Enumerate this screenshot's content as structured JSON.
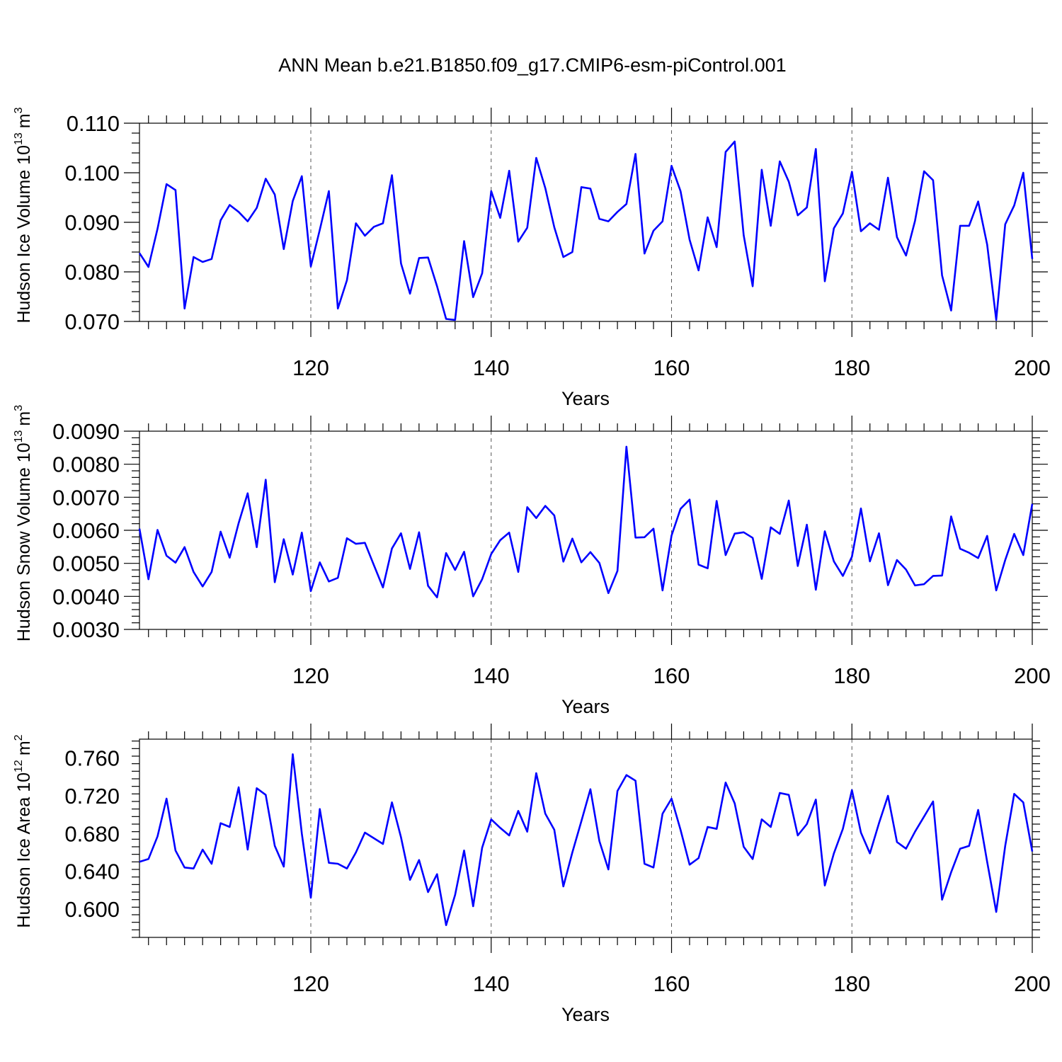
{
  "title": "ANN Mean b.e21.B1850.f09_g17.CMIP6-esm-piControl.001",
  "colors": {
    "line": "#0000ff",
    "axis": "#000000",
    "grid": "#555555"
  },
  "chart_data": [
    {
      "type": "line",
      "name": "ice-volume",
      "ylabel_main": "Hudson Ice Volume 10",
      "ylabel_exp": "13",
      "ylabel_unit": "m",
      "ylabel_unit_exp": "3",
      "xlabel": "Years",
      "xlim": [
        101,
        200
      ],
      "ylim": [
        0.07,
        0.11
      ],
      "yticks": [
        0.07,
        0.08,
        0.09,
        0.1,
        0.11
      ],
      "ytick_labels": [
        "0.070",
        "0.080",
        "0.090",
        "0.100",
        "0.110"
      ],
      "xticks": [
        120,
        140,
        160,
        180,
        200
      ],
      "xtick_labels": [
        "120",
        "140",
        "160",
        "180",
        "200"
      ],
      "x": [
        101,
        102,
        103,
        104,
        105,
        106,
        107,
        108,
        109,
        110,
        111,
        112,
        113,
        114,
        115,
        116,
        117,
        118,
        119,
        120,
        121,
        122,
        123,
        124,
        125,
        126,
        127,
        128,
        129,
        130,
        131,
        132,
        133,
        134,
        135,
        136,
        137,
        138,
        139,
        140,
        141,
        142,
        143,
        144,
        145,
        146,
        147,
        148,
        149,
        150,
        151,
        152,
        153,
        154,
        155,
        156,
        157,
        158,
        159,
        160,
        161,
        162,
        163,
        164,
        165,
        166,
        167,
        168,
        169,
        170,
        171,
        172,
        173,
        174,
        175,
        176,
        177,
        178,
        179,
        180,
        181,
        182,
        183,
        184,
        185,
        186,
        187,
        188,
        189,
        190,
        191,
        192,
        193,
        194,
        195,
        196,
        197,
        198,
        199,
        200
      ],
      "values": [
        0.0838,
        0.081,
        0.0887,
        0.0977,
        0.0965,
        0.0726,
        0.083,
        0.082,
        0.0826,
        0.0904,
        0.0935,
        0.0921,
        0.0902,
        0.0929,
        0.0988,
        0.0956,
        0.0846,
        0.0943,
        0.0993,
        0.0811,
        0.0885,
        0.0963,
        0.0726,
        0.0783,
        0.0898,
        0.0873,
        0.0891,
        0.0898,
        0.0995,
        0.0817,
        0.0756,
        0.0828,
        0.0829,
        0.0771,
        0.0705,
        0.0703,
        0.0862,
        0.0749,
        0.0797,
        0.0963,
        0.0909,
        0.1004,
        0.0861,
        0.0889,
        0.103,
        0.0969,
        0.089,
        0.083,
        0.084,
        0.0971,
        0.0968,
        0.0907,
        0.0902,
        0.0921,
        0.0937,
        0.1038,
        0.0837,
        0.0883,
        0.0902,
        0.1014,
        0.0963,
        0.0865,
        0.0803,
        0.091,
        0.085,
        0.1042,
        0.1063,
        0.0874,
        0.0771,
        0.1006,
        0.0893,
        0.1023,
        0.0982,
        0.0914,
        0.093,
        0.1048,
        0.0781,
        0.0888,
        0.0918,
        0.1002,
        0.0882,
        0.0898,
        0.0885,
        0.099,
        0.087,
        0.0833,
        0.0903,
        0.1003,
        0.0985,
        0.0793,
        0.0722,
        0.0893,
        0.0893,
        0.0942,
        0.0855,
        0.0703,
        0.0896,
        0.0934,
        0.1,
        0.0826
      ]
    },
    {
      "type": "line",
      "name": "snow-volume",
      "ylabel_main": "Hudson Snow Volume 10",
      "ylabel_exp": "13",
      "ylabel_unit": "m",
      "ylabel_unit_exp": "3",
      "xlabel": "Years",
      "xlim": [
        101,
        200
      ],
      "ylim": [
        0.003,
        0.009
      ],
      "yticks": [
        0.003,
        0.004,
        0.005,
        0.006,
        0.007,
        0.008,
        0.009
      ],
      "ytick_labels": [
        "0.0030",
        "0.0040",
        "0.0050",
        "0.0060",
        "0.0070",
        "0.0080",
        "0.0090"
      ],
      "xticks": [
        120,
        140,
        160,
        180,
        200
      ],
      "xtick_labels": [
        "120",
        "140",
        "160",
        "180",
        "200"
      ],
      "x": [
        101,
        102,
        103,
        104,
        105,
        106,
        107,
        108,
        109,
        110,
        111,
        112,
        113,
        114,
        115,
        116,
        117,
        118,
        119,
        120,
        121,
        122,
        123,
        124,
        125,
        126,
        127,
        128,
        129,
        130,
        131,
        132,
        133,
        134,
        135,
        136,
        137,
        138,
        139,
        140,
        141,
        142,
        143,
        144,
        145,
        146,
        147,
        148,
        149,
        150,
        151,
        152,
        153,
        154,
        155,
        156,
        157,
        158,
        159,
        160,
        161,
        162,
        163,
        164,
        165,
        166,
        167,
        168,
        169,
        170,
        171,
        172,
        173,
        174,
        175,
        176,
        177,
        178,
        179,
        180,
        181,
        182,
        183,
        184,
        185,
        186,
        187,
        188,
        189,
        190,
        191,
        192,
        193,
        194,
        195,
        196,
        197,
        198,
        199,
        200
      ],
      "values": [
        0.00605,
        0.00452,
        0.00601,
        0.00523,
        0.00502,
        0.00549,
        0.00474,
        0.0043,
        0.00474,
        0.00596,
        0.00517,
        0.00622,
        0.00712,
        0.00549,
        0.00753,
        0.00443,
        0.00573,
        0.00466,
        0.00593,
        0.00416,
        0.00503,
        0.00445,
        0.00456,
        0.00576,
        0.00559,
        0.00562,
        0.00494,
        0.00427,
        0.00545,
        0.00591,
        0.00483,
        0.00594,
        0.00432,
        0.00397,
        0.00531,
        0.0048,
        0.00535,
        0.004,
        0.00452,
        0.00528,
        0.0057,
        0.00593,
        0.00474,
        0.0067,
        0.00637,
        0.00674,
        0.00645,
        0.00505,
        0.00575,
        0.00503,
        0.00534,
        0.00501,
        0.0041,
        0.00477,
        0.00853,
        0.00578,
        0.00579,
        0.00605,
        0.00418,
        0.00584,
        0.00665,
        0.00693,
        0.00496,
        0.00485,
        0.00689,
        0.00525,
        0.0059,
        0.00594,
        0.00577,
        0.00453,
        0.00609,
        0.00589,
        0.0069,
        0.00492,
        0.00617,
        0.0042,
        0.00597,
        0.00506,
        0.00462,
        0.0052,
        0.00666,
        0.00506,
        0.00591,
        0.00434,
        0.0051,
        0.00481,
        0.00433,
        0.00437,
        0.00462,
        0.00463,
        0.00642,
        0.00544,
        0.00532,
        0.00516,
        0.00583,
        0.00418,
        0.0051,
        0.00589,
        0.00525,
        0.0068
      ]
    },
    {
      "type": "line",
      "name": "ice-area",
      "ylabel_main": "Hudson Ice Area 10",
      "ylabel_exp": "12",
      "ylabel_unit": "m",
      "ylabel_unit_exp": "2",
      "xlabel": "Years",
      "xlim": [
        101,
        200
      ],
      "ylim": [
        0.57,
        0.78
      ],
      "yticks": [
        0.6,
        0.64,
        0.68,
        0.72,
        0.76
      ],
      "ytick_labels": [
        "0.600",
        "0.640",
        "0.680",
        "0.720",
        "0.760"
      ],
      "xticks": [
        120,
        140,
        160,
        180,
        200
      ],
      "xtick_labels": [
        "120",
        "140",
        "160",
        "180",
        "200"
      ],
      "x": [
        101,
        102,
        103,
        104,
        105,
        106,
        107,
        108,
        109,
        110,
        111,
        112,
        113,
        114,
        115,
        116,
        117,
        118,
        119,
        120,
        121,
        122,
        123,
        124,
        125,
        126,
        127,
        128,
        129,
        130,
        131,
        132,
        133,
        134,
        135,
        136,
        137,
        138,
        139,
        140,
        141,
        142,
        143,
        144,
        145,
        146,
        147,
        148,
        149,
        150,
        151,
        152,
        153,
        154,
        155,
        156,
        157,
        158,
        159,
        160,
        161,
        162,
        163,
        164,
        165,
        166,
        167,
        168,
        169,
        170,
        171,
        172,
        173,
        174,
        175,
        176,
        177,
        178,
        179,
        180,
        181,
        182,
        183,
        184,
        185,
        186,
        187,
        188,
        189,
        190,
        191,
        192,
        193,
        194,
        195,
        196,
        197,
        198,
        199,
        200
      ],
      "values": [
        0.65,
        0.653,
        0.677,
        0.717,
        0.662,
        0.644,
        0.643,
        0.663,
        0.648,
        0.691,
        0.687,
        0.729,
        0.663,
        0.728,
        0.721,
        0.667,
        0.645,
        0.764,
        0.68,
        0.612,
        0.706,
        0.649,
        0.648,
        0.643,
        0.66,
        0.681,
        0.675,
        0.669,
        0.713,
        0.676,
        0.631,
        0.652,
        0.618,
        0.637,
        0.583,
        0.615,
        0.662,
        0.603,
        0.665,
        0.695,
        0.686,
        0.678,
        0.704,
        0.682,
        0.744,
        0.701,
        0.684,
        0.624,
        0.66,
        0.693,
        0.727,
        0.672,
        0.642,
        0.725,
        0.742,
        0.736,
        0.648,
        0.644,
        0.701,
        0.717,
        0.684,
        0.647,
        0.654,
        0.687,
        0.685,
        0.734,
        0.712,
        0.666,
        0.653,
        0.695,
        0.687,
        0.723,
        0.721,
        0.678,
        0.69,
        0.716,
        0.625,
        0.659,
        0.685,
        0.726,
        0.681,
        0.659,
        0.691,
        0.72,
        0.671,
        0.664,
        0.682,
        0.698,
        0.714,
        0.61,
        0.639,
        0.664,
        0.667,
        0.705,
        0.65,
        0.597,
        0.667,
        0.722,
        0.713,
        0.661
      ]
    }
  ]
}
